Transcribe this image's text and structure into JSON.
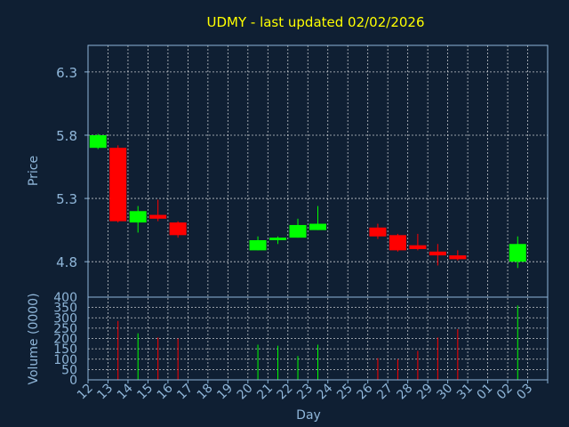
{
  "chart_data": {
    "type": "candlestick",
    "title": "UDMY - last updated 02/02/2026",
    "xlabel": "Day",
    "price_axis": {
      "label": "Price",
      "ticks": [
        "6.3",
        "5.8",
        "5.3",
        "4.8"
      ],
      "tick_values": [
        6.3,
        5.8,
        5.3,
        4.8
      ],
      "range": [
        4.52,
        6.51
      ]
    },
    "volume_axis": {
      "label": "Volume (0000)",
      "ticks": [
        "400",
        "350",
        "300",
        "250",
        "200",
        "150",
        "100",
        "50",
        "0"
      ],
      "tick_values": [
        400,
        350,
        300,
        250,
        200,
        150,
        100,
        50,
        0
      ],
      "range": [
        0,
        400
      ]
    },
    "days": [
      "12",
      "13",
      "14",
      "15",
      "16",
      "17",
      "18",
      "19",
      "20",
      "21",
      "22",
      "23",
      "24",
      "25",
      "26",
      "27",
      "28",
      "29",
      "30",
      "31",
      "01",
      "02",
      "03"
    ],
    "grid": true,
    "colors": {
      "up": "#00ff00",
      "down": "#ff0000",
      "title": "#ffff00",
      "axis_text": "#8fb6d9",
      "grid": "#ffffff",
      "background": "#0f1f33"
    },
    "candles": [
      {
        "day": "12",
        "open": 5.7,
        "close": 5.8,
        "high": 5.81,
        "low": 5.69,
        "volume": 0
      },
      {
        "day": "13",
        "open": 5.7,
        "close": 5.12,
        "high": 5.72,
        "low": 5.11,
        "volume": 285
      },
      {
        "day": "14",
        "open": 5.11,
        "close": 5.2,
        "high": 5.24,
        "low": 5.03,
        "volume": 225
      },
      {
        "day": "15",
        "open": 5.17,
        "close": 5.14,
        "high": 5.29,
        "low": 5.12,
        "volume": 205
      },
      {
        "day": "16",
        "open": 5.11,
        "close": 5.01,
        "high": 5.12,
        "low": 4.99,
        "volume": 200
      },
      {
        "day": "20",
        "open": 4.89,
        "close": 4.97,
        "high": 5.0,
        "low": 4.89,
        "volume": 170
      },
      {
        "day": "21",
        "open": 4.97,
        "close": 4.99,
        "high": 5.0,
        "low": 4.94,
        "volume": 165
      },
      {
        "day": "22",
        "open": 4.99,
        "close": 5.09,
        "high": 5.14,
        "low": 4.99,
        "volume": 115
      },
      {
        "day": "23",
        "open": 5.05,
        "close": 5.1,
        "high": 5.24,
        "low": 5.05,
        "volume": 170
      },
      {
        "day": "26",
        "open": 5.07,
        "close": 5.0,
        "high": 5.1,
        "low": 4.98,
        "volume": 105
      },
      {
        "day": "27",
        "open": 5.01,
        "close": 4.89,
        "high": 5.02,
        "low": 4.88,
        "volume": 100
      },
      {
        "day": "28",
        "open": 4.93,
        "close": 4.9,
        "high": 5.02,
        "low": 4.89,
        "volume": 140
      },
      {
        "day": "29",
        "open": 4.88,
        "close": 4.85,
        "high": 4.94,
        "low": 4.77,
        "volume": 205
      },
      {
        "day": "30",
        "open": 4.85,
        "close": 4.82,
        "high": 4.89,
        "low": 4.81,
        "volume": 245
      },
      {
        "day": "02",
        "open": 4.8,
        "close": 4.94,
        "high": 5.0,
        "low": 4.75,
        "volume": 360
      }
    ]
  }
}
